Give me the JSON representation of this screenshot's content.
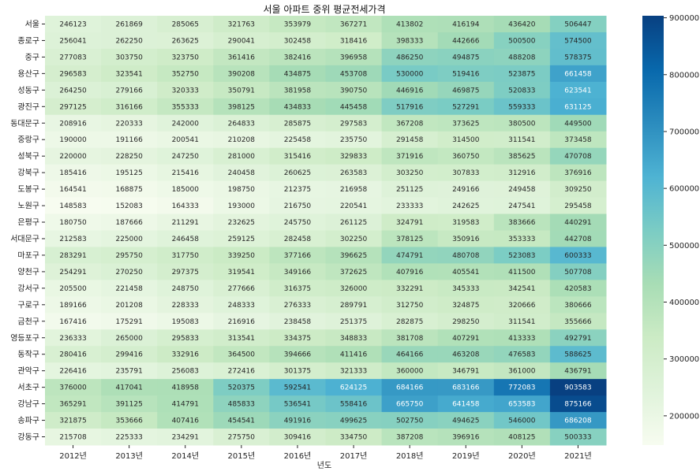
{
  "chart_data": {
    "type": "heatmap",
    "title": "서울 아파트 중위 평균전세가격",
    "xlabel": "년도",
    "ylabel": "",
    "x": [
      "2012년",
      "2013년",
      "2014년",
      "2015년",
      "2016년",
      "2017년",
      "2018년",
      "2019년",
      "2020년",
      "2021년"
    ],
    "y": [
      "서울",
      "종로구",
      "중구",
      "용산구",
      "성동구",
      "광진구",
      "동대문구",
      "중랑구",
      "성북구",
      "강북구",
      "도봉구",
      "노원구",
      "은평구",
      "서대문구",
      "마포구",
      "양천구",
      "강서구",
      "구로구",
      "금천구",
      "영등포구",
      "동작구",
      "관악구",
      "서초구",
      "강남구",
      "송파구",
      "강동구"
    ],
    "values": [
      [
        246123,
        261869,
        285065,
        321763,
        353979,
        367271,
        413802,
        416194,
        436420,
        506447
      ],
      [
        256041,
        262250,
        263625,
        290041,
        302458,
        318416,
        398333,
        442666,
        500500,
        574500
      ],
      [
        277083,
        303750,
        323750,
        361416,
        382416,
        396958,
        486250,
        494875,
        488208,
        578375
      ],
      [
        296583,
        323541,
        352750,
        390208,
        434875,
        453708,
        530000,
        519416,
        523875,
        661458
      ],
      [
        264250,
        279166,
        320333,
        350791,
        381958,
        390750,
        446916,
        469875,
        520833,
        623541
      ],
      [
        297125,
        316166,
        355333,
        398125,
        434833,
        445458,
        517916,
        527291,
        559333,
        631125
      ],
      [
        208916,
        220333,
        242000,
        264833,
        285875,
        297583,
        367208,
        373625,
        380500,
        449500
      ],
      [
        190000,
        191166,
        200541,
        210208,
        225458,
        235750,
        291458,
        314500,
        311541,
        373458
      ],
      [
        220000,
        228250,
        247250,
        281000,
        315416,
        329833,
        371916,
        360750,
        385625,
        470708
      ],
      [
        185416,
        195125,
        215416,
        240458,
        260625,
        263583,
        303250,
        307833,
        312916,
        376916
      ],
      [
        164541,
        168875,
        185000,
        198750,
        212375,
        216958,
        251125,
        249166,
        249458,
        309250
      ],
      [
        148583,
        152083,
        164333,
        193000,
        216750,
        220541,
        233333,
        242625,
        247541,
        295458
      ],
      [
        180750,
        187666,
        211291,
        232625,
        245750,
        261125,
        324791,
        319583,
        383666,
        440291
      ],
      [
        212583,
        225000,
        246458,
        259125,
        282458,
        302250,
        378125,
        350916,
        353333,
        442708
      ],
      [
        283291,
        295750,
        317750,
        339250,
        377166,
        396625,
        474791,
        480708,
        523083,
        600333
      ],
      [
        254291,
        270250,
        297375,
        319541,
        349166,
        372625,
        407916,
        405541,
        411500,
        507708
      ],
      [
        205500,
        221458,
        248750,
        277666,
        316375,
        326000,
        332291,
        345333,
        342541,
        420583
      ],
      [
        189166,
        201208,
        228333,
        248333,
        276333,
        289791,
        312750,
        324875,
        320666,
        380666
      ],
      [
        167416,
        175291,
        195083,
        216916,
        238458,
        251375,
        282875,
        298250,
        311541,
        355666
      ],
      [
        236333,
        265000,
        295833,
        313541,
        334375,
        348833,
        381708,
        407291,
        413333,
        492791
      ],
      [
        280416,
        299416,
        332916,
        364500,
        394666,
        411416,
        464166,
        463208,
        476583,
        588625
      ],
      [
        226416,
        235791,
        256083,
        272416,
        301375,
        321333,
        360000,
        346791,
        361000,
        436791
      ],
      [
        376000,
        417041,
        418958,
        520375,
        592541,
        624125,
        684166,
        683166,
        772083,
        903583
      ],
      [
        365291,
        391125,
        414791,
        485833,
        536541,
        558416,
        665750,
        641458,
        653583,
        875166
      ],
      [
        321875,
        353666,
        407416,
        454541,
        491916,
        499625,
        502750,
        494625,
        546000,
        686208
      ],
      [
        215708,
        225333,
        234291,
        275750,
        309416,
        334750,
        387208,
        396916,
        408125,
        500333
      ]
    ],
    "colormap": "GnBu",
    "colorbar": {
      "range": [
        148583,
        903583
      ],
      "ticks": [
        200000,
        300000,
        400000,
        500000,
        600000,
        700000,
        800000,
        900000
      ],
      "tick_labels": [
        "200000",
        "300000",
        "400000",
        "500000",
        "600000",
        "700000",
        "800000",
        "900000"
      ]
    },
    "annotations": true,
    "grid": false
  }
}
